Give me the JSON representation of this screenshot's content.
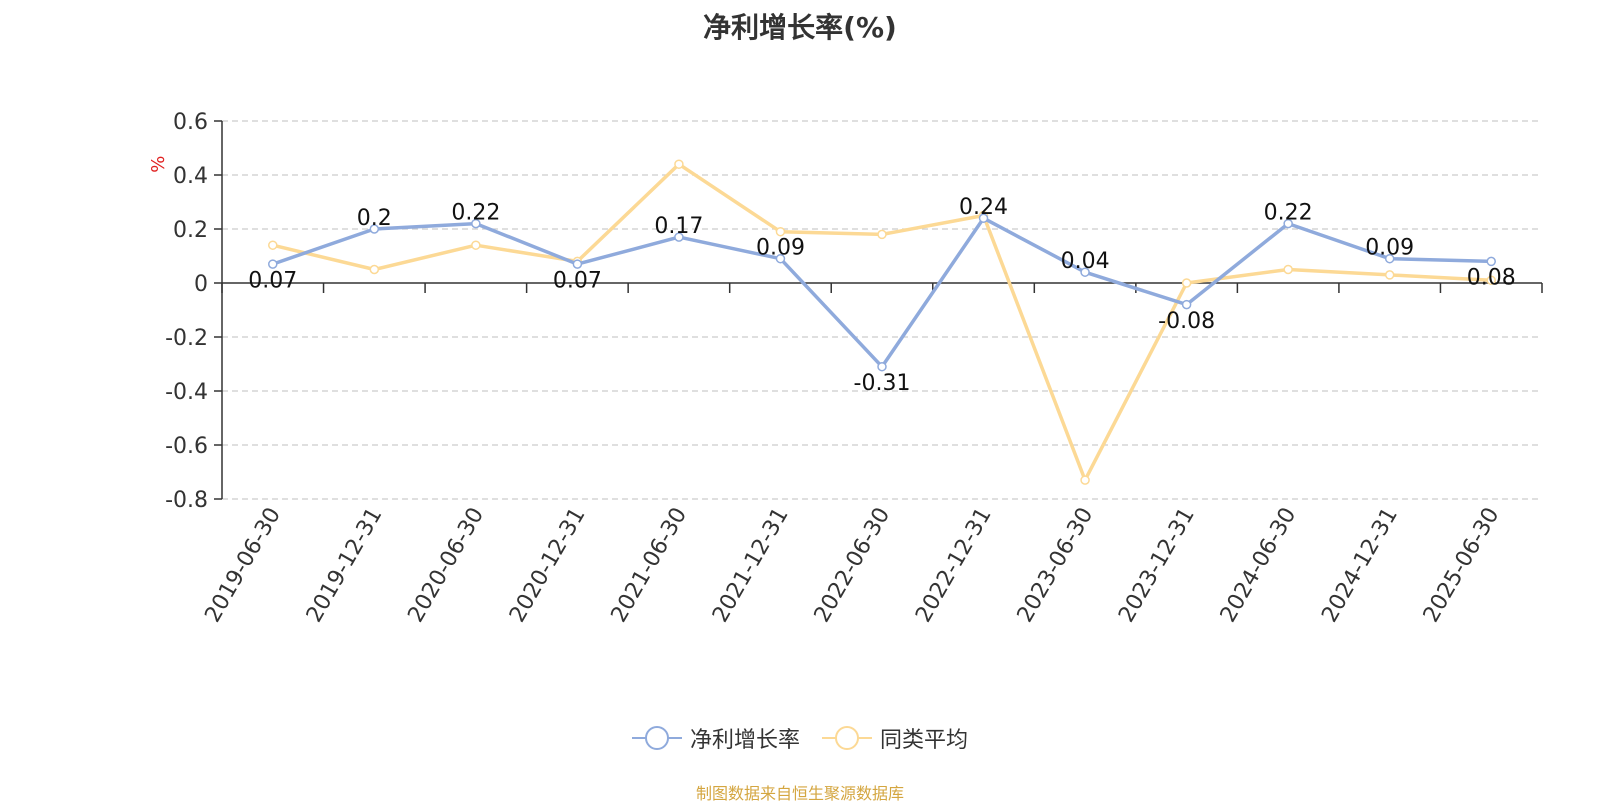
{
  "chart_data": {
    "type": "line",
    "title": "净利增长率(%)",
    "ylabel": "%",
    "xlabel": "",
    "categories": [
      "2019-06-30",
      "2019-12-31",
      "2020-06-30",
      "2020-12-31",
      "2021-06-30",
      "2021-12-31",
      "2022-06-30",
      "2022-12-31",
      "2023-06-30",
      "2023-12-31",
      "2024-06-30",
      "2024-12-31",
      "2025-06-30"
    ],
    "ylim": [
      -0.8,
      0.6
    ],
    "yticks": [
      0.6,
      0.4,
      0.2,
      0,
      -0.2,
      -0.4,
      -0.6,
      -0.8
    ],
    "ytick_labels": [
      "0.6",
      "0.4",
      "0.2",
      "0",
      "-0.2",
      "-0.4",
      "-0.6",
      "-0.8"
    ],
    "grid": true,
    "legend_position": "bottom",
    "series": [
      {
        "name": "净利增长率",
        "color": "#8faadc",
        "values": [
          0.07,
          0.2,
          0.22,
          0.07,
          0.17,
          0.09,
          -0.31,
          0.24,
          0.04,
          -0.08,
          0.22,
          0.09,
          0.08
        ],
        "labels": [
          "0.07",
          "0.2",
          "0.22",
          "0.07",
          "0.17",
          "0.09",
          "-0.31",
          "0.24",
          "0.04",
          "-0.08",
          "0.22",
          "0.09",
          "0.08"
        ]
      },
      {
        "name": "同类平均",
        "color": "#fcd995",
        "values": [
          0.14,
          0.05,
          0.14,
          0.08,
          0.44,
          0.19,
          0.18,
          0.25,
          -0.73,
          0.0,
          0.05,
          0.03,
          0.01
        ]
      }
    ]
  },
  "source": "制图数据来自恒生聚源数据库"
}
